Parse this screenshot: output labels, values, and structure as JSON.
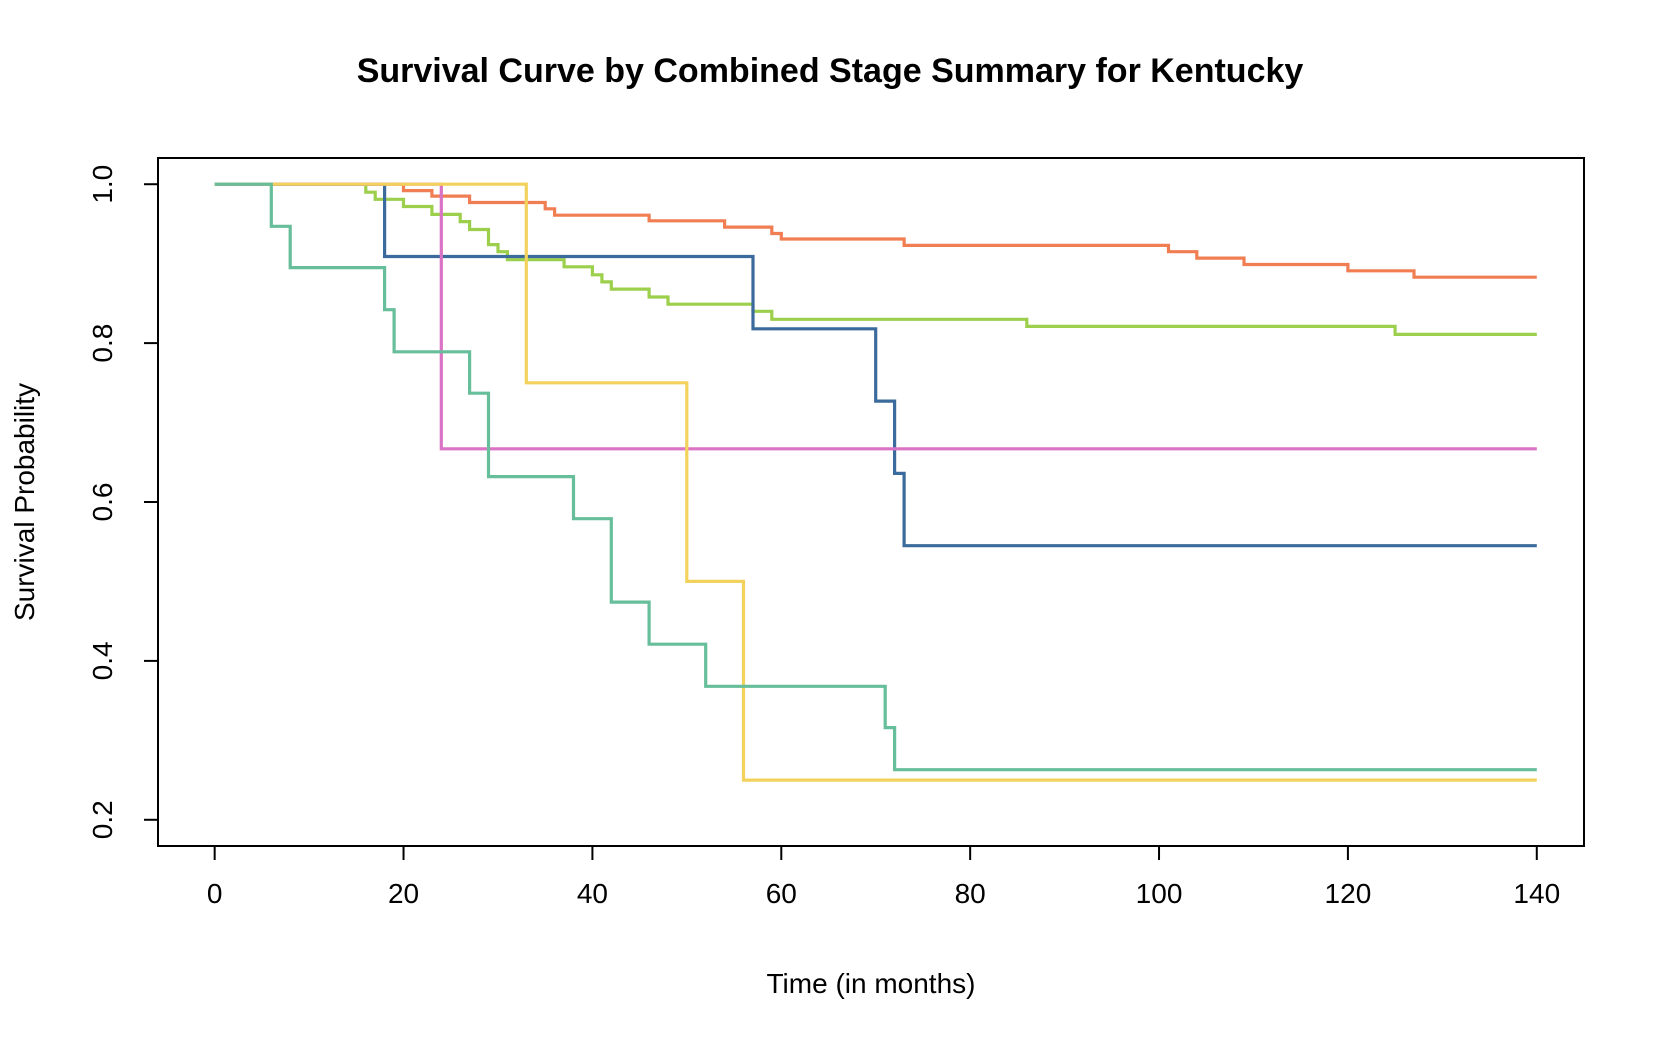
{
  "chart_data": {
    "type": "line",
    "title": "Survival Curve by Combined Stage Summary for Kentucky",
    "xlabel": "Time (in months)",
    "ylabel": "Survival Probability",
    "xlim": [
      -6,
      145
    ],
    "ylim": [
      0.167,
      1.033
    ],
    "x_ticks": [
      "0",
      "20",
      "40",
      "60",
      "80",
      "100",
      "120",
      "140"
    ],
    "y_ticks": [
      "0.2",
      "0.4",
      "0.6",
      "0.8",
      "1.0"
    ],
    "grid": false,
    "legend": "none",
    "step": true,
    "series": [
      {
        "color": "#F07E52",
        "points": [
          [
            0,
            1.0
          ],
          [
            20,
            0.992
          ],
          [
            23,
            0.985
          ],
          [
            27,
            0.977
          ],
          [
            35,
            0.969
          ],
          [
            36,
            0.961
          ],
          [
            46,
            0.954
          ],
          [
            54,
            0.946
          ],
          [
            59,
            0.938
          ],
          [
            60,
            0.931
          ],
          [
            73,
            0.923
          ],
          [
            101,
            0.915
          ],
          [
            104,
            0.907
          ],
          [
            109,
            0.899
          ],
          [
            120,
            0.891
          ],
          [
            127,
            0.883
          ],
          [
            140,
            0.883
          ]
        ]
      },
      {
        "color": "#9CCF4B",
        "points": [
          [
            0,
            1.0
          ],
          [
            16,
            0.99
          ],
          [
            17,
            0.981
          ],
          [
            20,
            0.972
          ],
          [
            23,
            0.962
          ],
          [
            26,
            0.953
          ],
          [
            27,
            0.943
          ],
          [
            29,
            0.924
          ],
          [
            30,
            0.915
          ],
          [
            31,
            0.905
          ],
          [
            37,
            0.896
          ],
          [
            40,
            0.886
          ],
          [
            41,
            0.877
          ],
          [
            42,
            0.868
          ],
          [
            46,
            0.858
          ],
          [
            48,
            0.849
          ],
          [
            57,
            0.84
          ],
          [
            59,
            0.83
          ],
          [
            86,
            0.821
          ],
          [
            125,
            0.811
          ],
          [
            140,
            0.811
          ]
        ]
      },
      {
        "color": "#3B6A9C",
        "points": [
          [
            0,
            1.0
          ],
          [
            18,
            0.909
          ],
          [
            57,
            0.818
          ],
          [
            70,
            0.727
          ],
          [
            72,
            0.636
          ],
          [
            73,
            0.545
          ],
          [
            140,
            0.545
          ]
        ]
      },
      {
        "color": "#DA72C5",
        "points": [
          [
            0,
            1.0
          ],
          [
            24,
            0.667
          ],
          [
            140,
            0.667
          ]
        ]
      },
      {
        "color": "#F2D25C",
        "points": [
          [
            0,
            1.0
          ],
          [
            33,
            0.75
          ],
          [
            50,
            0.5
          ],
          [
            56,
            0.25
          ],
          [
            140,
            0.25
          ]
        ]
      },
      {
        "color": "#66BE9A",
        "points": [
          [
            0,
            1.0
          ],
          [
            6,
            0.947
          ],
          [
            8,
            0.895
          ],
          [
            18,
            0.842
          ],
          [
            19,
            0.789
          ],
          [
            27,
            0.737
          ],
          [
            29,
            0.632
          ],
          [
            38,
            0.579
          ],
          [
            42,
            0.474
          ],
          [
            46,
            0.421
          ],
          [
            52,
            0.368
          ],
          [
            71,
            0.316
          ],
          [
            72,
            0.263
          ],
          [
            140,
            0.263
          ]
        ]
      }
    ]
  }
}
